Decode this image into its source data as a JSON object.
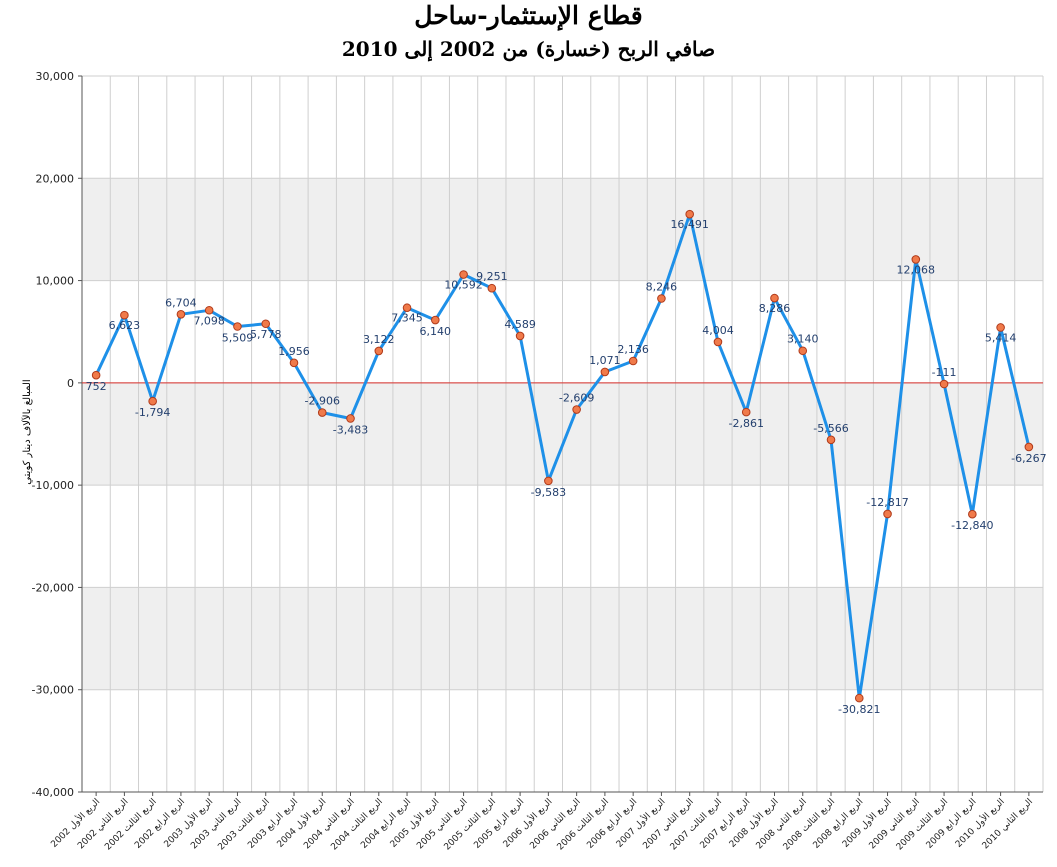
{
  "chart_data": {
    "type": "line",
    "title": "قطاع الإستثمار-ساحل",
    "subtitle": "صافي الربح (خسارة) من 2002 إلى 2010",
    "ylabel": "المبالغ بالآلاف دينار كويتي",
    "xlabel": "",
    "ylim": [
      -40000,
      30000
    ],
    "yticks": [
      -40000,
      -30000,
      -20000,
      -10000,
      0,
      10000,
      20000,
      30000
    ],
    "ytick_labels": [
      "-40,000",
      "-30,000",
      "-20,000",
      "-10,000",
      "0",
      "10,000",
      "20,000",
      "30,000"
    ],
    "grid": true,
    "legend": "none",
    "colors": {
      "line": "#1e90e8",
      "marker_fill": "#f07a4a",
      "marker_stroke": "#b03a1a",
      "zero_line": "#d9302c",
      "band": "#efefef",
      "grid": "#cfcfcf",
      "label": "#24406e"
    },
    "categories": [
      "الربع الأول 2002",
      "الربع الثاني 2002",
      "الربع الثالث 2002",
      "الربع الرابع 2002",
      "الربع الأول 2003",
      "الربع الثاني 2003",
      "الربع الثالث 2003",
      "الربع الرابع 2003",
      "الربع الأول 2004",
      "الربع الثاني 2004",
      "الربع الثالث 2004",
      "الربع الرابع 2004",
      "الربع الأول 2005",
      "الربع الثاني 2005",
      "الربع الثالث 2005",
      "الربع الرابع 2005",
      "الربع الأول 2006",
      "الربع الثاني 2006",
      "الربع الثالث 2006",
      "الربع الرابع 2006",
      "الربع الأول 2007",
      "الربع الثاني 2007",
      "الربع الثالث 2007",
      "الربع الرابع 2007",
      "الربع الأول 2008",
      "الربع الثاني 2008",
      "الربع الثالث 2008",
      "الربع الرابع 2008",
      "الربع الأول 2009",
      "الربع الثاني 2009",
      "الربع الثالث 2009",
      "الربع الرابع 2009",
      "الربع الأول 2010",
      "الربع الثاني 2010"
    ],
    "values": [
      752,
      6623,
      -1794,
      6704,
      7098,
      5509,
      5778,
      1956,
      -2906,
      -3483,
      3122,
      7345,
      6140,
      10592,
      9251,
      4589,
      -9583,
      -2609,
      1071,
      2136,
      8246,
      16491,
      4004,
      -2861,
      8286,
      3140,
      -5566,
      -30821,
      -12817,
      12068,
      -111,
      -12840,
      5414,
      -6267
    ],
    "value_labels": [
      "752",
      "6,623",
      "-1,794",
      "6,704",
      "7,098",
      "5,509",
      "5,778",
      "1,956",
      "-2,906",
      "-3,483",
      "3,122",
      "7,345",
      "6,140",
      "10,592",
      "9,251",
      "4,589",
      "-9,583",
      "-2,609",
      "1,071",
      "2,136",
      "8,246",
      "16,491",
      "4,004",
      "-2,861",
      "8,286",
      "3,140",
      "-5,566",
      "-30,821",
      "-12,817",
      "12,068",
      "-111",
      "-12,840",
      "5,414",
      "-6,267"
    ]
  }
}
